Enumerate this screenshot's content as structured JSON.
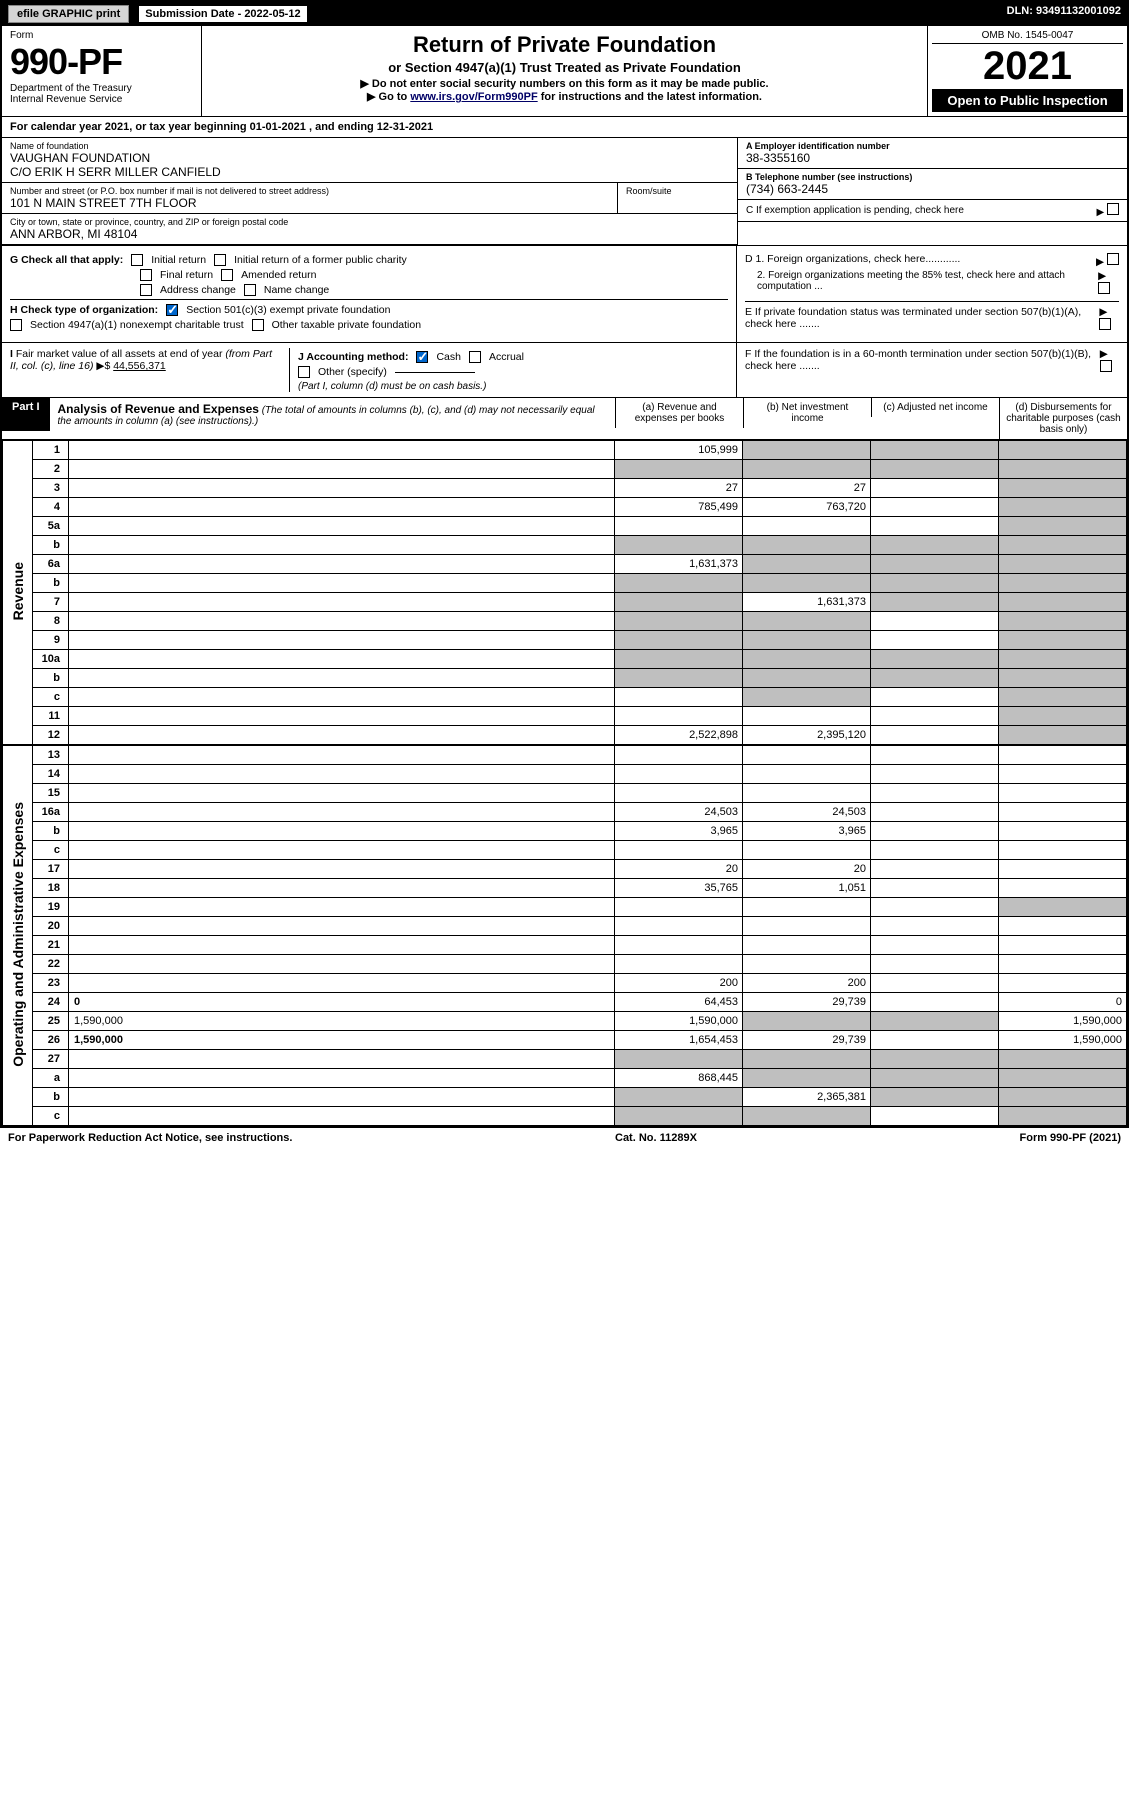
{
  "topbar": {
    "efile": "efile GRAPHIC print",
    "sub_label": "Submission Date - 2022-05-12",
    "dln": "DLN: 93491132001092"
  },
  "header": {
    "form_word": "Form",
    "form_number": "990-PF",
    "dept1": "Department of the Treasury",
    "dept2": "Internal Revenue Service",
    "title": "Return of Private Foundation",
    "subtitle": "or Section 4947(a)(1) Trust Treated as Private Foundation",
    "note1": "▶ Do not enter social security numbers on this form as it may be made public.",
    "note2_pre": "▶ Go to ",
    "note2_link": "www.irs.gov/Form990PF",
    "note2_post": " for instructions and the latest information.",
    "omb": "OMB No. 1545-0047",
    "year": "2021",
    "open": "Open to Public Inspection"
  },
  "calendar": "For calendar year 2021, or tax year beginning 01-01-2021            , and ending 12-31-2021",
  "entity": {
    "name_lbl": "Name of foundation",
    "name1": "VAUGHAN FOUNDATION",
    "name2": "C/O ERIK H SERR MILLER CANFIELD",
    "addr_lbl": "Number and street (or P.O. box number if mail is not delivered to street address)",
    "addr": "101 N MAIN STREET 7TH FLOOR",
    "room_lbl": "Room/suite",
    "city_lbl": "City or town, state or province, country, and ZIP or foreign postal code",
    "city": "ANN ARBOR, MI  48104",
    "ein_lbl": "A Employer identification number",
    "ein": "38-3355160",
    "tel_lbl": "B Telephone number (see instructions)",
    "tel": "(734) 663-2445",
    "c_lbl": "C If exemption application is pending, check here"
  },
  "checks": {
    "g_label": "G Check all that apply:",
    "g_opts": [
      "Initial return",
      "Initial return of a former public charity",
      "Final return",
      "Amended return",
      "Address change",
      "Name change"
    ],
    "h_label": "H Check type of organization:",
    "h1": "Section 501(c)(3) exempt private foundation",
    "h2": "Section 4947(a)(1) nonexempt charitable trust",
    "h3": "Other taxable private foundation",
    "i_label": "I Fair market value of all assets at end of year (from Part II, col. (c), line 16) ▶$",
    "i_val": "44,556,371",
    "j_label": "J Accounting method:",
    "j_cash": "Cash",
    "j_accr": "Accrual",
    "j_other": "Other (specify)",
    "j_note": "(Part I, column (d) must be on cash basis.)",
    "d1": "D 1. Foreign organizations, check here............",
    "d2": "2. Foreign organizations meeting the 85% test, check here and attach computation ...",
    "e": "E  If private foundation status was terminated under section 507(b)(1)(A), check here .......",
    "f": "F  If the foundation is in a 60-month termination under section 507(b)(1)(B), check here ......."
  },
  "part1": {
    "label": "Part I",
    "title": "Analysis of Revenue and Expenses",
    "title_note": "(The total of amounts in columns (b), (c), and (d) may not necessarily equal the amounts in column (a) (see instructions).)",
    "col_a": "(a)   Revenue and expenses per books",
    "col_b": "(b)   Net investment income",
    "col_c": "(c)   Adjusted net income",
    "col_d": "(d)   Disbursements for charitable purposes (cash basis only)"
  },
  "side_labels": {
    "rev": "Revenue",
    "exp": "Operating and Administrative Expenses"
  },
  "rows": [
    {
      "n": "1",
      "d": "",
      "a": "105,999",
      "b": "",
      "c": "",
      "shade": [
        "b",
        "c",
        "d"
      ]
    },
    {
      "n": "2",
      "d": "",
      "a": "",
      "b": "",
      "c": "",
      "shade": [
        "a",
        "b",
        "c",
        "d"
      ]
    },
    {
      "n": "3",
      "d": "",
      "a": "27",
      "b": "27",
      "c": "",
      "shade": [
        "d"
      ]
    },
    {
      "n": "4",
      "d": "",
      "a": "785,499",
      "b": "763,720",
      "c": "",
      "shade": [
        "d"
      ]
    },
    {
      "n": "5a",
      "d": "",
      "a": "",
      "b": "",
      "c": "",
      "shade": [
        "d"
      ]
    },
    {
      "n": "b",
      "d": "",
      "a": "",
      "b": "",
      "c": "",
      "shade": [
        "a",
        "b",
        "c",
        "d"
      ]
    },
    {
      "n": "6a",
      "d": "",
      "a": "1,631,373",
      "b": "",
      "c": "",
      "shade": [
        "b",
        "c",
        "d"
      ]
    },
    {
      "n": "b",
      "d": "",
      "a": "",
      "b": "",
      "c": "",
      "shade": [
        "a",
        "b",
        "c",
        "d"
      ]
    },
    {
      "n": "7",
      "d": "",
      "a": "",
      "b": "1,631,373",
      "c": "",
      "shade": [
        "a",
        "c",
        "d"
      ]
    },
    {
      "n": "8",
      "d": "",
      "a": "",
      "b": "",
      "c": "",
      "shade": [
        "a",
        "b",
        "d"
      ]
    },
    {
      "n": "9",
      "d": "",
      "a": "",
      "b": "",
      "c": "",
      "shade": [
        "a",
        "b",
        "d"
      ]
    },
    {
      "n": "10a",
      "d": "",
      "a": "",
      "b": "",
      "c": "",
      "shade": [
        "a",
        "b",
        "c",
        "d"
      ]
    },
    {
      "n": "b",
      "d": "",
      "a": "",
      "b": "",
      "c": "",
      "shade": [
        "a",
        "b",
        "c",
        "d"
      ]
    },
    {
      "n": "c",
      "d": "",
      "a": "",
      "b": "",
      "c": "",
      "shade": [
        "b",
        "d"
      ]
    },
    {
      "n": "11",
      "d": "",
      "a": "",
      "b": "",
      "c": "",
      "shade": [
        "d"
      ]
    },
    {
      "n": "12",
      "d": "",
      "a": "2,522,898",
      "b": "2,395,120",
      "c": "",
      "shade": [
        "d"
      ],
      "bold": true
    }
  ],
  "exp_rows": [
    {
      "n": "13",
      "d": "",
      "a": "",
      "b": "",
      "c": ""
    },
    {
      "n": "14",
      "d": "",
      "a": "",
      "b": "",
      "c": ""
    },
    {
      "n": "15",
      "d": "",
      "a": "",
      "b": "",
      "c": ""
    },
    {
      "n": "16a",
      "d": "",
      "a": "24,503",
      "b": "24,503",
      "c": ""
    },
    {
      "n": "b",
      "d": "",
      "a": "3,965",
      "b": "3,965",
      "c": ""
    },
    {
      "n": "c",
      "d": "",
      "a": "",
      "b": "",
      "c": ""
    },
    {
      "n": "17",
      "d": "",
      "a": "20",
      "b": "20",
      "c": ""
    },
    {
      "n": "18",
      "d": "",
      "a": "35,765",
      "b": "1,051",
      "c": ""
    },
    {
      "n": "19",
      "d": "",
      "a": "",
      "b": "",
      "c": "",
      "shade": [
        "d"
      ]
    },
    {
      "n": "20",
      "d": "",
      "a": "",
      "b": "",
      "c": ""
    },
    {
      "n": "21",
      "d": "",
      "a": "",
      "b": "",
      "c": ""
    },
    {
      "n": "22",
      "d": "",
      "a": "",
      "b": "",
      "c": ""
    },
    {
      "n": "23",
      "d": "",
      "a": "200",
      "b": "200",
      "c": ""
    },
    {
      "n": "24",
      "d": "0",
      "a": "64,453",
      "b": "29,739",
      "c": "",
      "bold": true
    },
    {
      "n": "25",
      "d": "1,590,000",
      "a": "1,590,000",
      "b": "",
      "c": "",
      "shade": [
        "b",
        "c"
      ]
    },
    {
      "n": "26",
      "d": "1,590,000",
      "a": "1,654,453",
      "b": "29,739",
      "c": "",
      "bold": true
    },
    {
      "n": "27",
      "d": "",
      "a": "",
      "b": "",
      "c": "",
      "shade": [
        "a",
        "b",
        "c",
        "d"
      ]
    },
    {
      "n": "a",
      "d": "",
      "a": "868,445",
      "b": "",
      "c": "",
      "shade": [
        "b",
        "c",
        "d"
      ],
      "bold": true
    },
    {
      "n": "b",
      "d": "",
      "a": "",
      "b": "2,365,381",
      "c": "",
      "shade": [
        "a",
        "c",
        "d"
      ],
      "bold": true
    },
    {
      "n": "c",
      "d": "",
      "a": "",
      "b": "",
      "c": "",
      "shade": [
        "a",
        "b",
        "d"
      ],
      "bold": true
    }
  ],
  "footer": {
    "left": "For Paperwork Reduction Act Notice, see instructions.",
    "mid": "Cat. No. 11289X",
    "right": "Form 990-PF (2021)"
  }
}
